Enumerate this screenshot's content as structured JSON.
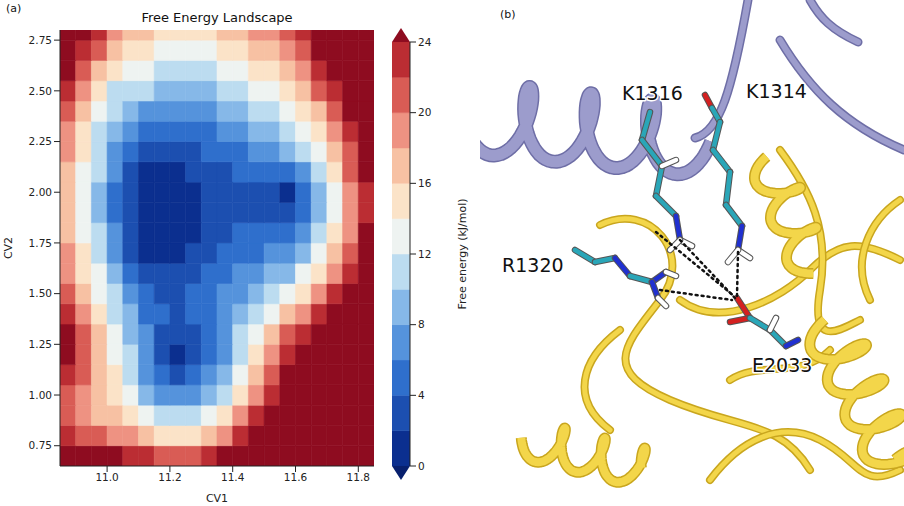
{
  "chart_data": {
    "type": "contour",
    "panel_label": "(a)",
    "title": "Free Energy Landscape",
    "x_label": "CV1",
    "y_label": "CV2",
    "xlim": [
      10.85,
      11.85
    ],
    "ylim": [
      0.65,
      2.8
    ],
    "xticks": [
      {
        "value": 11,
        "label": "11.0"
      },
      11.2,
      11.4,
      11.6,
      11.8
    ],
    "yticks": [
      0.75,
      {
        "value": 1,
        "label": "1.00"
      },
      1.25,
      {
        "value": 1.5,
        "label": "1.50"
      },
      1.75,
      {
        "value": 2,
        "label": "2.00"
      },
      2.25,
      {
        "value": 2.5,
        "label": "2.50"
      },
      2.75
    ],
    "x": [
      10.875,
      10.925,
      10.975,
      11.025,
      11.075,
      11.125,
      11.175,
      11.225,
      11.275,
      11.325,
      11.375,
      11.425,
      11.475,
      11.525,
      11.575,
      11.625,
      11.675,
      11.725,
      11.775,
      11.825
    ],
    "y": [
      0.7,
      0.8,
      0.9,
      1.0,
      1.1,
      1.2,
      1.3,
      1.4,
      1.5,
      1.6,
      1.7,
      1.8,
      1.9,
      2.0,
      2.1,
      2.2,
      2.3,
      2.4,
      2.5,
      2.6,
      2.7,
      2.8
    ],
    "z": [
      [
        26,
        25,
        24,
        24,
        23,
        22,
        21,
        20,
        21,
        22,
        24,
        26,
        27,
        28,
        28,
        28,
        28,
        28,
        28,
        28
      ],
      [
        23,
        21,
        20,
        19,
        18,
        16,
        15,
        14.5,
        15,
        16,
        19,
        22,
        25,
        27,
        28,
        28,
        28,
        28,
        28,
        28
      ],
      [
        21,
        18,
        17,
        16,
        14,
        12,
        10.5,
        10,
        10.5,
        12,
        14,
        18,
        22,
        25,
        27,
        28,
        28,
        28,
        28,
        28
      ],
      [
        21,
        18,
        16,
        14,
        12,
        9.5,
        7,
        6.5,
        7,
        8.5,
        11,
        15,
        19,
        23,
        26,
        28,
        28,
        28,
        28,
        28
      ],
      [
        23,
        20,
        17,
        14,
        11,
        7.5,
        4.5,
        3.5,
        4,
        6,
        9,
        12.5,
        17,
        21,
        25,
        27,
        28,
        28,
        28,
        28
      ],
      [
        25,
        21,
        17,
        13.5,
        10,
        6.5,
        3,
        1.5,
        2.5,
        4.5,
        7.5,
        11,
        15,
        19,
        23,
        26,
        27,
        28,
        28,
        28
      ],
      [
        25,
        21,
        16.5,
        13,
        9,
        6,
        3.5,
        2.5,
        3,
        4.5,
        7,
        10,
        13,
        16,
        20,
        23,
        26,
        27,
        28,
        28
      ],
      [
        23,
        19,
        15,
        11.5,
        8,
        5.5,
        4,
        3.5,
        4,
        5,
        6.5,
        8.5,
        11,
        13,
        16,
        19,
        22,
        25,
        27,
        28
      ],
      [
        21,
        17,
        13.5,
        10,
        6.5,
        4.5,
        3.5,
        3.5,
        4,
        5,
        6,
        7.5,
        9,
        10.5,
        12.5,
        15,
        18,
        22,
        25,
        27
      ],
      [
        19,
        15,
        12,
        8.5,
        5,
        3,
        2.5,
        3,
        3.5,
        4.5,
        5,
        6,
        7,
        8,
        9.5,
        12,
        15,
        19,
        23,
        26
      ],
      [
        18,
        14,
        11,
        7,
        3.5,
        1.5,
        1.2,
        1.5,
        2.5,
        3.5,
        4,
        5,
        5.5,
        6,
        7,
        9,
        12,
        16,
        21,
        25
      ],
      [
        17,
        13.5,
        10,
        6,
        2.5,
        1,
        0.5,
        1,
        1.8,
        3,
        3.5,
        4,
        4.5,
        4.5,
        5,
        6.5,
        10,
        14,
        19,
        24
      ],
      [
        17,
        13,
        9.5,
        5.5,
        2,
        0.5,
        0.2,
        0.6,
        1.5,
        2.5,
        3,
        3.5,
        3.5,
        3,
        2.8,
        5,
        9,
        13,
        18,
        23
      ],
      [
        17,
        13,
        9.5,
        5.5,
        2,
        0.5,
        0.3,
        0.8,
        1.5,
        2.5,
        3,
        3.5,
        3.5,
        2.5,
        1.5,
        5,
        9,
        13,
        18,
        23
      ],
      [
        17,
        13.5,
        10,
        6,
        3,
        1.5,
        1,
        1.5,
        2,
        3,
        3.5,
        4,
        5,
        5,
        5.5,
        7.5,
        11,
        15,
        20,
        24
      ],
      [
        18,
        14,
        10.5,
        7,
        4.5,
        2.5,
        2,
        2.5,
        3,
        4,
        4.5,
        5.5,
        6.5,
        7,
        8,
        10,
        13,
        17,
        21,
        25
      ],
      [
        19,
        15,
        11,
        8.5,
        6.5,
        5,
        4.5,
        4.5,
        5,
        5.5,
        6,
        7,
        8,
        9,
        10,
        12,
        15,
        19,
        23,
        25
      ],
      [
        20,
        16,
        12,
        10,
        8.5,
        7.5,
        7,
        7,
        7,
        7.5,
        8,
        9,
        10,
        11,
        12,
        14,
        17,
        21,
        24,
        26
      ],
      [
        22,
        18,
        14,
        11.5,
        10.5,
        10,
        9.5,
        9,
        9,
        9.5,
        10,
        11,
        12,
        13,
        15,
        17,
        20,
        23,
        25,
        26
      ],
      [
        24,
        21,
        17,
        14,
        12.5,
        12,
        11.5,
        11,
        11,
        11.5,
        12,
        13,
        14,
        15,
        17,
        19,
        22,
        25,
        26,
        27
      ],
      [
        25,
        23,
        20,
        17,
        15,
        14,
        13.5,
        13,
        13,
        13,
        14,
        15,
        16,
        17,
        19,
        21,
        24,
        26,
        27,
        28
      ],
      [
        26,
        25,
        22,
        19,
        17,
        16,
        15,
        15,
        15,
        15,
        16,
        17,
        18,
        19,
        21,
        23,
        25,
        26,
        27,
        28
      ]
    ],
    "colorbar": {
      "label": "Free energy (kJ/mol)",
      "range": [
        0,
        24
      ],
      "ticks": [
        0,
        4,
        8,
        12,
        16,
        20,
        24
      ],
      "levels": [
        0,
        2,
        4,
        6,
        8,
        10,
        12,
        14,
        16,
        18,
        20,
        22,
        24
      ],
      "colors": [
        "#08206e",
        "#0b2f8f",
        "#1c4fb0",
        "#2f6fcc",
        "#5593dc",
        "#86b8e8",
        "#bcdcf0",
        "#eef3f1",
        "#fbe3c8",
        "#f7c1a3",
        "#ee9282",
        "#d95c55",
        "#bb2d33",
        "#8e0c20"
      ]
    }
  },
  "image_panel": {
    "panel_label": "(b)",
    "residue_labels": [
      "K1316",
      "K1314",
      "R1320",
      "E2033"
    ]
  }
}
